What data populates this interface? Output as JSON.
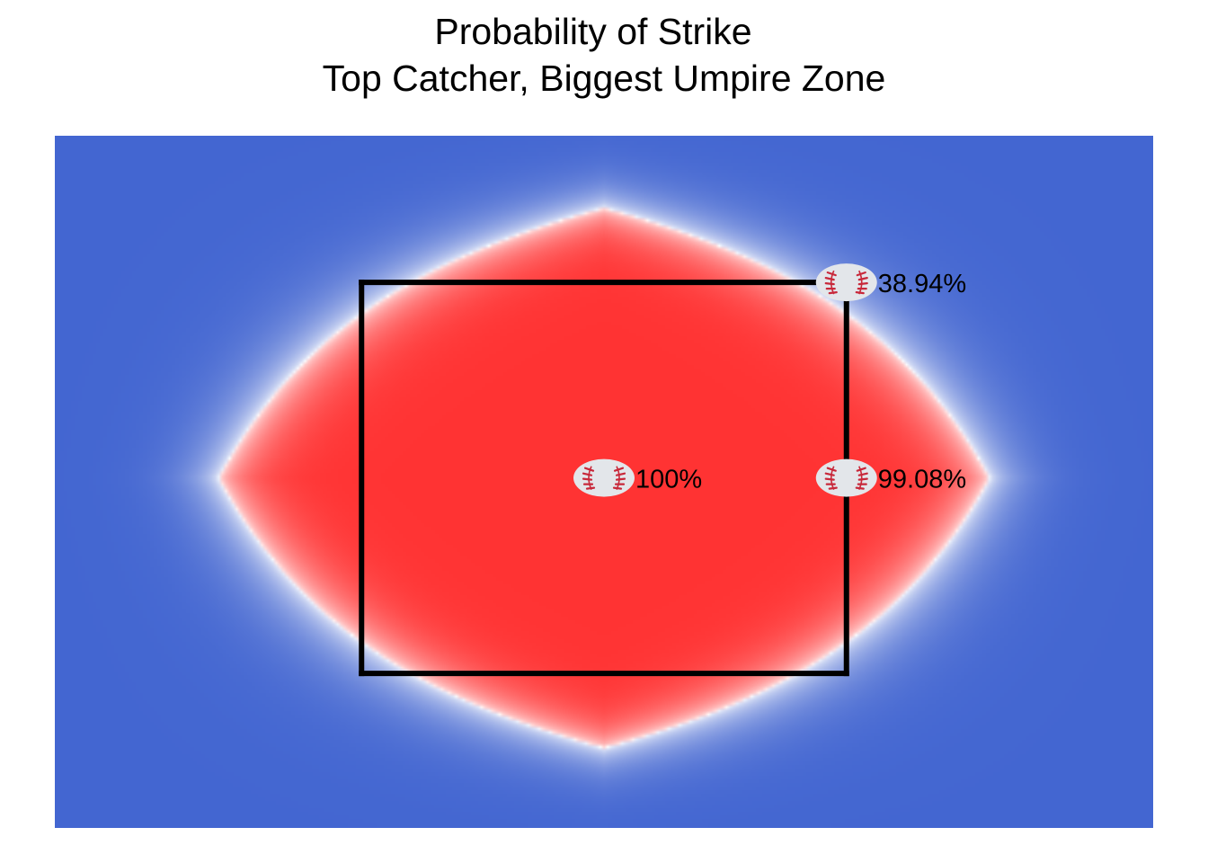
{
  "chart_data": {
    "type": "heatmap",
    "title": "Probability of Strike",
    "subtitle": "Top Catcher, Biggest Umpire Zone",
    "xlabel": "",
    "ylabel": "",
    "grid": false,
    "legend": "none",
    "colors": {
      "high": "#ff3333",
      "mid": "#ffffff",
      "low": "#4366d1",
      "zone_outline": "#000000",
      "baseball_fill": "#e3e6ea",
      "baseball_stitch": "#c8283a"
    },
    "strike_zone": {
      "x_range": [
        -0.83,
        0.83
      ],
      "z_range": [
        1.6,
        3.6
      ],
      "sides_drawn": [
        "left",
        "top",
        "right",
        "bottom"
      ]
    },
    "field": {
      "x_range": [
        -1.88,
        1.88
      ],
      "z_range": [
        0.81,
        4.35
      ]
    },
    "probability_region": {
      "peak_center": [
        0.0,
        2.6
      ],
      "half_width_50pct": 1.32,
      "half_height_50pct": 1.38
    },
    "points": [
      {
        "x": 0.0,
        "z": 2.6,
        "label": "100%",
        "value": 100.0
      },
      {
        "x": 0.83,
        "z": 2.6,
        "label": "99.08%",
        "value": 99.08
      },
      {
        "x": 0.83,
        "z": 3.6,
        "label": "38.94%",
        "value": 38.94
      }
    ]
  }
}
